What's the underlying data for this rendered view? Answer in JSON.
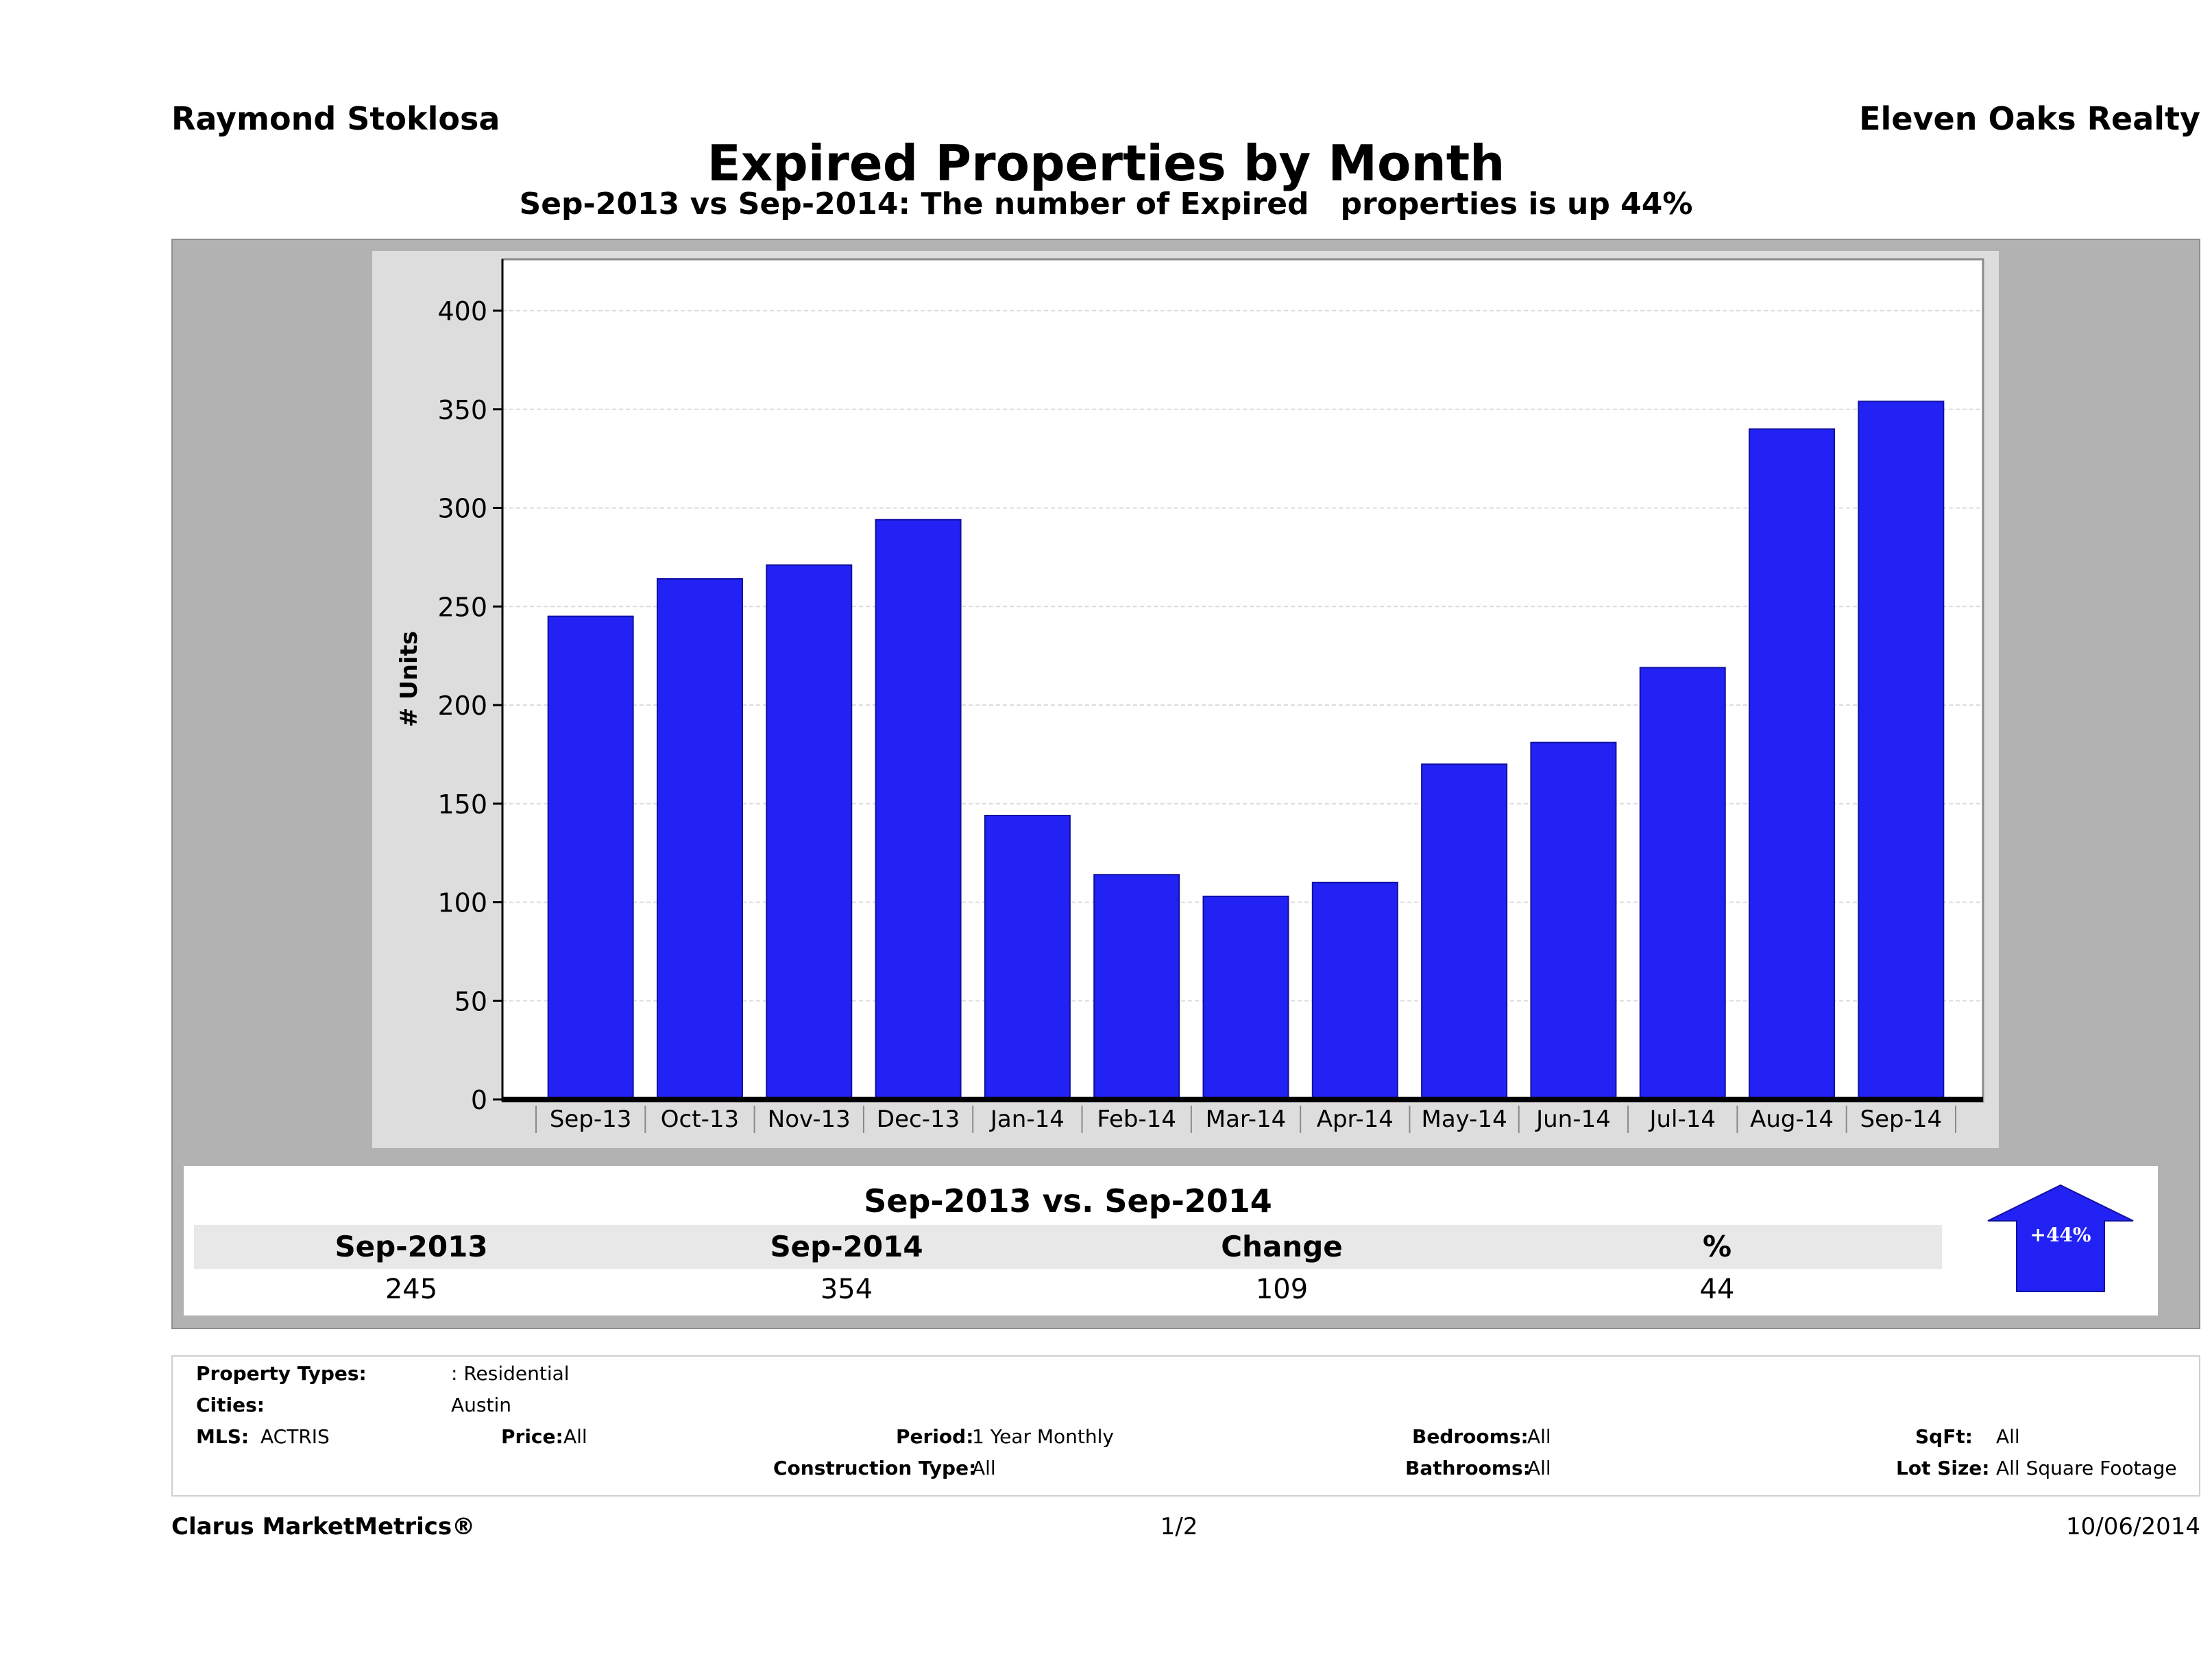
{
  "header": {
    "agent": "Raymond Stoklosa",
    "brokerage": "Eleven Oaks Realty",
    "title": "Expired Properties by Month",
    "subtitle": "Sep-2013 vs Sep-2014: The number of Expired   properties is up 44%"
  },
  "chart_data": {
    "type": "bar",
    "title": "Expired Properties by Month",
    "xlabel": "",
    "ylabel": "# Units",
    "ylim": [
      0,
      425
    ],
    "yticks": [
      0,
      50,
      100,
      150,
      200,
      250,
      300,
      350,
      400
    ],
    "yticklabels": [
      "0",
      "50",
      "100",
      "150",
      "200",
      "250",
      "300",
      "350",
      "400"
    ],
    "categories": [
      "Sep-13",
      "Oct-13",
      "Nov-13",
      "Dec-13",
      "Jan-14",
      "Feb-14",
      "Mar-14",
      "Apr-14",
      "May-14",
      "Jun-14",
      "Jul-14",
      "Aug-14",
      "Sep-14"
    ],
    "values": [
      245,
      264,
      271,
      294,
      144,
      114,
      103,
      110,
      170,
      181,
      219,
      340,
      354
    ],
    "grid": true,
    "bar_color": "#2222f5"
  },
  "summary": {
    "title": "Sep-2013 vs. Sep-2014",
    "headers": [
      "Sep-2013",
      "Sep-2014",
      "Change",
      "%"
    ],
    "values": [
      "245",
      "354",
      "109",
      "44"
    ],
    "badge": "+44%",
    "badge_color": "#2222f5"
  },
  "filters": {
    "property_types_label": "Property Types:",
    "property_types_value": ": Residential",
    "cities_label": "Cities:",
    "cities_value": "Austin",
    "mls_label": "MLS:",
    "mls_value": "ACTRIS",
    "price_label": "Price:",
    "price_value": "All",
    "period_label": "Period:",
    "period_value": "1 Year Monthly",
    "construction_label": "Construction Type:",
    "construction_value": "All",
    "bedrooms_label": "Bedrooms:",
    "bedrooms_value": "All",
    "bathrooms_label": "Bathrooms:",
    "bathrooms_value": "All",
    "sqft_label": "SqFt:",
    "sqft_value": "All",
    "lot_label": "Lot Size:",
    "lot_value": "All Square Footage"
  },
  "footer": {
    "product": "Clarus MarketMetrics®",
    "page": "1/2",
    "date": "10/06/2014"
  }
}
